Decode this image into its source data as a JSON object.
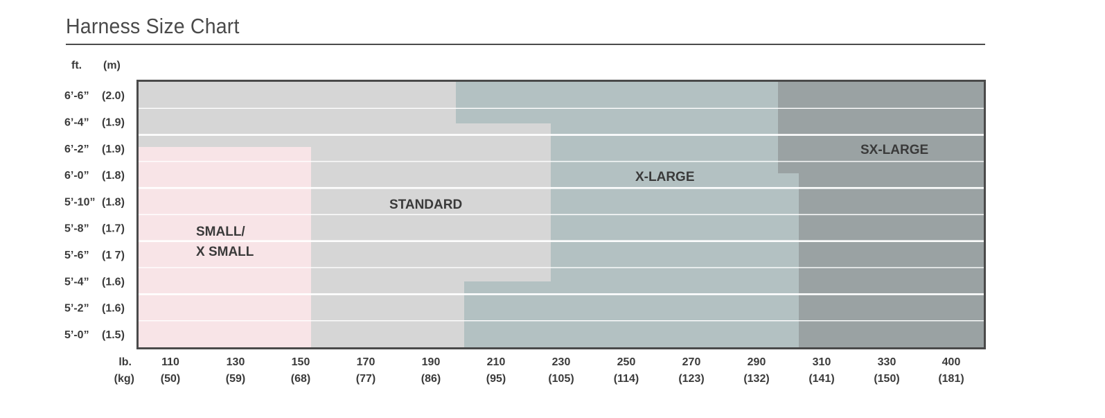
{
  "header": {
    "title": "Harness Size Chart",
    "col_ft": "ft.",
    "col_m": "(m)"
  },
  "chart_data": {
    "type": "table",
    "title": "Harness Size Chart",
    "y_unit_primary": "ft.",
    "y_unit_secondary": "(m)",
    "x_unit_primary": "lb.",
    "x_unit_secondary": "(kg)",
    "heights_top_to_bottom": [
      {
        "ft": "6’-6”",
        "m": "(2.0)"
      },
      {
        "ft": "6’-4”",
        "m": "(1.9)"
      },
      {
        "ft": "6’-2”",
        "m": "(1.9)"
      },
      {
        "ft": "6’-0”",
        "m": "(1.8)"
      },
      {
        "ft": "5’-10”",
        "m": "(1.8)"
      },
      {
        "ft": "5’-8”",
        "m": "(1.7)"
      },
      {
        "ft": "5’-6”",
        "m": "(1 7)"
      },
      {
        "ft": "5’-4”",
        "m": "(1.6)"
      },
      {
        "ft": "5’-2”",
        "m": "(1.6)"
      },
      {
        "ft": "5’-0”",
        "m": "(1.5)"
      }
    ],
    "weights": [
      {
        "lb": "110",
        "kg": "(50)"
      },
      {
        "lb": "130",
        "kg": "(59)"
      },
      {
        "lb": "150",
        "kg": "(68)"
      },
      {
        "lb": "170",
        "kg": "(77)"
      },
      {
        "lb": "190",
        "kg": "(86)"
      },
      {
        "lb": "210",
        "kg": "(95)"
      },
      {
        "lb": "230",
        "kg": "(105)"
      },
      {
        "lb": "250",
        "kg": "(114)"
      },
      {
        "lb": "270",
        "kg": "(123)"
      },
      {
        "lb": "290",
        "kg": "(132)"
      },
      {
        "lb": "310",
        "kg": "(141)"
      },
      {
        "lb": "330",
        "kg": "(150)"
      },
      {
        "lb": "400",
        "kg": "(181)"
      }
    ],
    "sizes": [
      {
        "label_lines": [
          "SMALL/",
          "X SMALL"
        ],
        "color": "#f8e4e7",
        "max_weight_lb": 150,
        "max_height": "6’-2”"
      },
      {
        "label_lines": [
          "STANDARD"
        ],
        "color": "#d6d6d6",
        "max_weight_lb": 230,
        "max_height": "6’-6”"
      },
      {
        "label_lines": [
          "X-LARGE"
        ],
        "color": "#b3c1c2",
        "max_weight_lb": 310,
        "max_height": "6’-6”"
      },
      {
        "label_lines": [
          "SX-LARGE"
        ],
        "color": "#9aa2a3",
        "max_weight_lb": 400,
        "max_height": "6’-6”"
      }
    ],
    "frame_color": "#4a4a4a",
    "grid_color": "#ffffff"
  }
}
